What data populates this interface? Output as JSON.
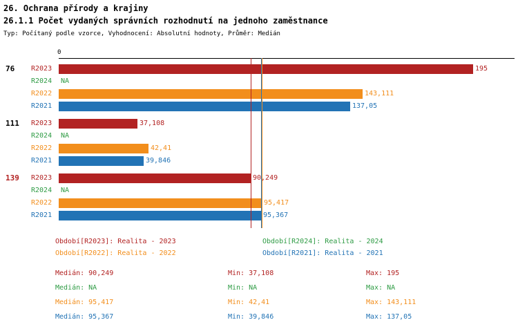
{
  "title": "26. Ochrana přírody a krajiny",
  "subtitle": "26.1.1 Počet vydaných správních rozhodnutí na jednoho zaměstnance",
  "meta": "Typ: Počítaný podle vzorce, Vyhodnocení: Absolutní hodnoty, Průměr: Medián",
  "chart_data": {
    "type": "bar",
    "orientation": "horizontal",
    "title": "26.1.1 Počet vydaných správních rozhodnutí na jednoho zaměstnance",
    "xlim": [
      0,
      195
    ],
    "x_origin_label": "0",
    "grid": false,
    "legend_position": "bottom",
    "series_order": [
      "R2023",
      "R2024",
      "R2022",
      "R2021"
    ],
    "series_colors": {
      "R2023": "#b22222",
      "R2024": "#2e9b44",
      "R2022": "#f28e1c",
      "R2021": "#2273b5"
    },
    "groups": [
      {
        "label": "76",
        "label_color": "#000000",
        "values": [
          {
            "series": "R2023",
            "value": 195,
            "display": "195"
          },
          {
            "series": "R2024",
            "value": null,
            "display": "NA"
          },
          {
            "series": "R2022",
            "value": 143.111,
            "display": "143,111"
          },
          {
            "series": "R2021",
            "value": 137.05,
            "display": "137,05"
          }
        ]
      },
      {
        "label": "111",
        "label_color": "#000000",
        "values": [
          {
            "series": "R2023",
            "value": 37.108,
            "display": "37,108"
          },
          {
            "series": "R2024",
            "value": null,
            "display": "NA"
          },
          {
            "series": "R2022",
            "value": 42.41,
            "display": "42,41"
          },
          {
            "series": "R2021",
            "value": 39.846,
            "display": "39,846"
          }
        ]
      },
      {
        "label": "139",
        "label_color": "#b22222",
        "values": [
          {
            "series": "R2023",
            "value": 90.249,
            "display": "90,249"
          },
          {
            "series": "R2024",
            "value": null,
            "display": "NA"
          },
          {
            "series": "R2022",
            "value": 95.417,
            "display": "95,417"
          },
          {
            "series": "R2021",
            "value": 95.367,
            "display": "95,367"
          }
        ]
      }
    ],
    "median_lines": [
      {
        "series": "R2023",
        "value": 90.249
      },
      {
        "series": "R2022",
        "value": 95.417
      },
      {
        "series": "R2021",
        "value": 95.367
      }
    ]
  },
  "legend": {
    "items": [
      {
        "text": "Období[R2023]: Realita - 2023",
        "color": "#b22222"
      },
      {
        "text": "Období[R2024]: Realita - 2024",
        "color": "#2e9b44"
      },
      {
        "text": "Období[R2022]: Realita - 2022",
        "color": "#f28e1c"
      },
      {
        "text": "Období[R2021]: Realita - 2021",
        "color": "#2273b5"
      }
    ]
  },
  "stats": {
    "rows": [
      {
        "color": "#b22222",
        "median": "Medián: 90,249",
        "min": "Min: 37,108",
        "max": "Max: 195"
      },
      {
        "color": "#2e9b44",
        "median": "Medián: NA",
        "min": "Min: NA",
        "max": "Max: NA"
      },
      {
        "color": "#f28e1c",
        "median": "Medián: 95,417",
        "min": "Min: 42,41",
        "max": "Max: 143,111"
      },
      {
        "color": "#2273b5",
        "median": "Medián: 95,367",
        "min": "Min: 39,846",
        "max": "Max: 137,05"
      }
    ]
  }
}
